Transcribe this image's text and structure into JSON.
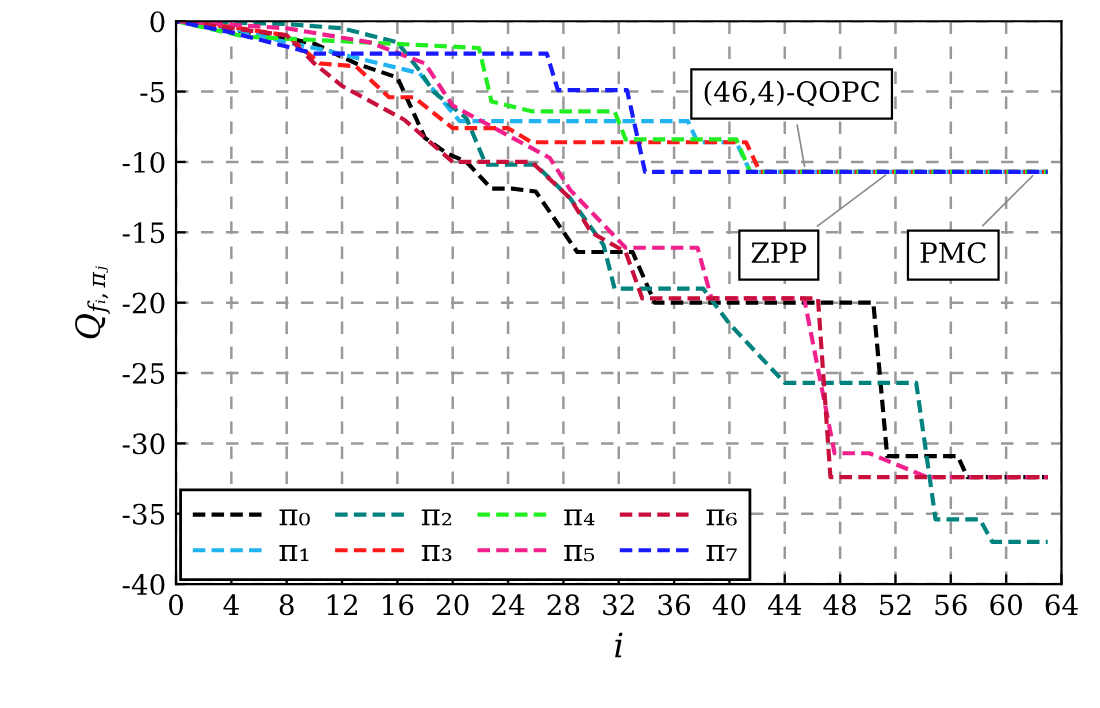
{
  "chart_data": {
    "type": "line",
    "xlabel": "i",
    "ylabel": "Q$_{fᵢ,πⱼ}$",
    "xlim": [
      0,
      64
    ],
    "ylim": [
      -40,
      0
    ],
    "xticks": [
      0,
      4,
      8,
      12,
      16,
      20,
      24,
      28,
      32,
      36,
      40,
      44,
      48,
      52,
      56,
      60,
      64
    ],
    "yticks": [
      0,
      -5,
      -10,
      -15,
      -20,
      -25,
      -30,
      -35,
      -40
    ],
    "grid": true,
    "legend": "bottom left",
    "line_style": "dashed",
    "marker": "none",
    "series": [
      {
        "name": "π₀",
        "color": "#000000",
        "x": [
          0,
          4,
          8,
          10,
          13,
          16,
          18,
          19.6,
          21,
          22.8,
          24.3,
          26,
          29,
          33,
          34.6,
          50.4,
          51.4,
          56.5,
          57.2,
          63
        ],
        "values": [
          0,
          -0.6,
          -1.2,
          -1.6,
          -3,
          -4,
          -8.3,
          -9.4,
          -10,
          -11.9,
          -11.9,
          -12.1,
          -16.4,
          -16.4,
          -20,
          -20,
          -30.9,
          -30.9,
          -32.4,
          -32.4
        ]
      },
      {
        "name": "π₁",
        "color": "#1fb4f0",
        "x": [
          0,
          4,
          8,
          11,
          17.6,
          20.5,
          37,
          37.7,
          40.5,
          41.5,
          63
        ],
        "values": [
          0,
          -0.5,
          -1.5,
          -2.1,
          -3.7,
          -7.1,
          -7.1,
          -8.6,
          -8.6,
          -10.7,
          -10.7
        ]
      },
      {
        "name": "π₂",
        "color": "#00827f",
        "x": [
          0,
          8,
          12,
          16,
          17.6,
          18.6,
          21,
          22.4,
          26,
          28.5,
          30.9,
          31.7,
          38.1,
          40,
          44,
          53.5,
          54.9,
          58.1,
          59,
          63
        ],
        "values": [
          0,
          -0.2,
          -0.5,
          -1.5,
          -3.5,
          -5,
          -6.9,
          -10.2,
          -10.2,
          -12.6,
          -15.9,
          -19,
          -19,
          -21.5,
          -25.7,
          -25.7,
          -35.4,
          -35.4,
          -37,
          -37
        ]
      },
      {
        "name": "π₃",
        "color": "#ff1a1a",
        "x": [
          0,
          4,
          8,
          10.4,
          13,
          15.4,
          17.2,
          20,
          24,
          25.7,
          41.2,
          42.2,
          63
        ],
        "values": [
          0,
          -0.4,
          -1,
          -3,
          -3.2,
          -5.4,
          -5.4,
          -7.6,
          -7.6,
          -8.6,
          -8.6,
          -10.7,
          -10.7
        ]
      },
      {
        "name": "π₄",
        "color": "#22ee22",
        "x": [
          0,
          5,
          15.8,
          21.9,
          22.8,
          25.7,
          31.7,
          32.5,
          40.5,
          41.5,
          63
        ],
        "values": [
          0,
          -1.1,
          -1.6,
          -1.9,
          -5.7,
          -6.4,
          -6.4,
          -8.4,
          -8.4,
          -10.7,
          -10.7
        ]
      },
      {
        "name": "π₅",
        "color": "#f0208c",
        "x": [
          0,
          8,
          14,
          18,
          20,
          27,
          28.5,
          32.5,
          37.7,
          38.7,
          45.4,
          47.6,
          50.1,
          54.3,
          63
        ],
        "values": [
          0,
          -0.5,
          -1.5,
          -3,
          -6,
          -9.7,
          -12,
          -16.1,
          -16.1,
          -19.7,
          -19.7,
          -30.7,
          -30.7,
          -32.4,
          -32.4
        ]
      },
      {
        "name": "π₆",
        "color": "#c8103c",
        "x": [
          0,
          8,
          10,
          12,
          16.5,
          20,
          25.7,
          28.5,
          30,
          32.5,
          33.7,
          46.4,
          47.3,
          63
        ],
        "values": [
          0,
          -1,
          -3,
          -4.6,
          -7,
          -10,
          -10,
          -12.6,
          -15,
          -16.4,
          -19.7,
          -19.7,
          -32.4,
          -32.4
        ]
      },
      {
        "name": "π₇",
        "color": "#1a1aff",
        "x": [
          0,
          4,
          8,
          10,
          26.8,
          27.6,
          32.6,
          33.9,
          63
        ],
        "values": [
          0,
          -0.8,
          -1.8,
          -2.3,
          -2.3,
          -4.9,
          -4.9,
          -10.7,
          -10.7
        ]
      }
    ],
    "annotations": [
      {
        "text": "(46,4)-QOPC",
        "x": 45.5,
        "y": -10.7
      },
      {
        "text": "ZPP",
        "x": 51.6,
        "y": -10.7
      },
      {
        "text": "PMC",
        "x": 62.2,
        "y": -10.7
      }
    ]
  }
}
